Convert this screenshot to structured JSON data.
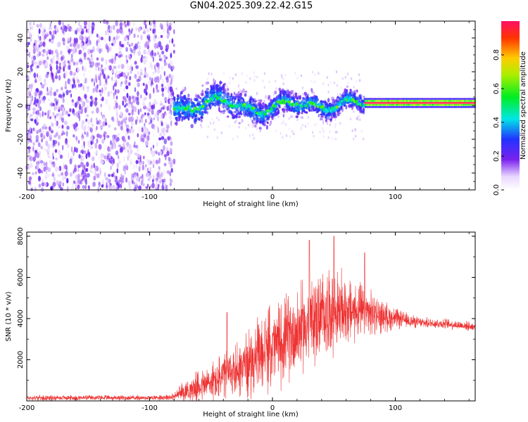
{
  "title": "GN04.2025.309.22.42.G15",
  "chart_data": [
    {
      "type": "heatmap",
      "xlabel": "Height of straight line (km)",
      "ylabel": "Frequency (Hz)",
      "xlim": [
        -200,
        165
      ],
      "ylim": [
        -50,
        50
      ],
      "xticks": [
        "-200",
        "-100",
        "0",
        "100"
      ],
      "yticks": [
        "40",
        "20",
        "0",
        "-20",
        "-40"
      ],
      "colorbar": {
        "label": "Normalized spectral amplitude",
        "range": [
          0,
          1
        ],
        "ticks": [
          "0.0",
          "0.2",
          "0.4",
          "0.6",
          "0.8"
        ]
      },
      "features": [
        {
          "region": "noise",
          "x_range": [
            -200,
            -80
          ],
          "frequency_range": [
            -50,
            50
          ],
          "amplitude": 0.1
        },
        {
          "region": "broadband signal",
          "x_range": [
            -80,
            75
          ],
          "frequency_center": 0,
          "frequency_halfwidth": 8,
          "amplitude": 0.3
        },
        {
          "region": "narrow line",
          "x_range": [
            75,
            165
          ],
          "frequency_center": 1.5,
          "amplitude": 0.95
        }
      ]
    },
    {
      "type": "line",
      "xlabel": "Height of straight line (km)",
      "ylabel": "SNR (10 * v/v)",
      "xlim": [
        -200,
        165
      ],
      "ylim": [
        0,
        8200
      ],
      "xticks": [
        "-200",
        "-100",
        "0",
        "100"
      ],
      "yticks": [
        "2000",
        "4000",
        "6000",
        "8000"
      ],
      "color": "#ee3333",
      "envelope": {
        "x": [
          -200,
          -150,
          -100,
          -80,
          -75,
          -60,
          -45,
          -30,
          -15,
          0,
          15,
          30,
          45,
          60,
          75,
          90,
          105,
          120,
          140,
          165
        ],
        "mean": [
          150,
          150,
          150,
          200,
          400,
          700,
          1000,
          1500,
          2000,
          2600,
          3200,
          3800,
          4300,
          4400,
          4300,
          4100,
          3950,
          3800,
          3750,
          3600
        ],
        "spread": [
          150,
          150,
          150,
          200,
          500,
          900,
          1300,
          1600,
          2000,
          2400,
          2500,
          2600,
          2500,
          2000,
          1500,
          900,
          500,
          300,
          300,
          250
        ]
      },
      "peaks": [
        {
          "x": -37,
          "y": 4300
        },
        {
          "x": 30,
          "y": 7800
        },
        {
          "x": 50,
          "y": 8000
        },
        {
          "x": 75,
          "y": 7200
        }
      ]
    }
  ]
}
